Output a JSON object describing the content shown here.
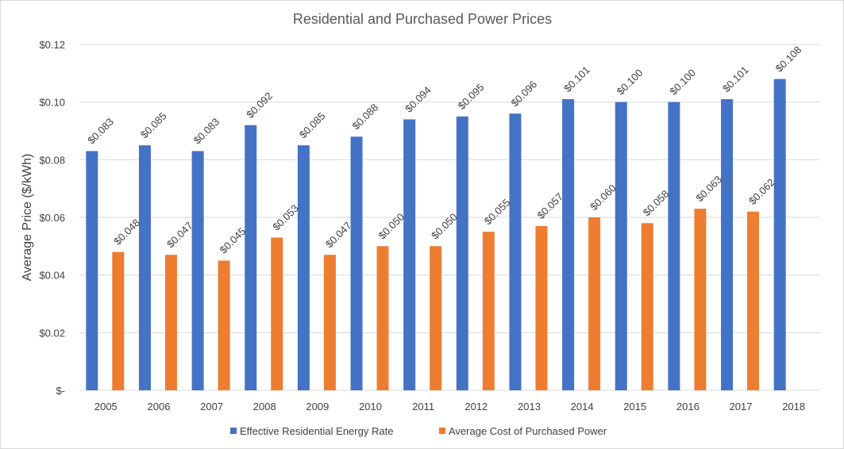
{
  "chart_data": {
    "type": "bar",
    "title": "Residential and Purchased Power Prices",
    "ylabel": "Average Price ($/kWh)",
    "xlabel": "",
    "ylim": [
      0,
      0.12
    ],
    "yticks": [
      {
        "value": 0,
        "label": "$-"
      },
      {
        "value": 0.02,
        "label": "$0.02"
      },
      {
        "value": 0.04,
        "label": "$0.04"
      },
      {
        "value": 0.06,
        "label": "$0.06"
      },
      {
        "value": 0.08,
        "label": "$0.08"
      },
      {
        "value": 0.1,
        "label": "$0.10"
      },
      {
        "value": 0.12,
        "label": "$0.12"
      }
    ],
    "categories": [
      "2005",
      "2006",
      "2007",
      "2008",
      "2009",
      "2010",
      "2011",
      "2012",
      "2013",
      "2014",
      "2015",
      "2016",
      "2017",
      "2018"
    ],
    "grid": true,
    "legend_position": "bottom",
    "series": [
      {
        "name": "Effective Residential Energy Rate",
        "color": "#4472c4",
        "values": [
          0.083,
          0.085,
          0.083,
          0.092,
          0.085,
          0.088,
          0.094,
          0.095,
          0.096,
          0.101,
          0.1,
          0.1,
          0.101,
          0.108
        ],
        "labels": [
          "$0.083",
          "$0.085",
          "$0.083",
          "$0.092",
          "$0.085",
          "$0.088",
          "$0.094",
          "$0.095",
          "$0.096",
          "$0.101",
          "$0.100",
          "$0.100",
          "$0.101",
          "$0.108"
        ]
      },
      {
        "name": "Average Cost of Purchased Power",
        "color": "#ed7d31",
        "values": [
          0.048,
          0.047,
          0.045,
          0.053,
          0.047,
          0.05,
          0.05,
          0.055,
          0.057,
          0.06,
          0.058,
          0.063,
          0.062,
          null
        ],
        "labels": [
          "$0.048",
          "$0.047",
          "$0.045",
          "$0.053",
          "$0.047",
          "$0.050",
          "$0.050",
          "$0.055",
          "$0.057",
          "$0.060",
          "$0.058",
          "$0.063",
          "$0.062",
          null
        ]
      }
    ]
  }
}
